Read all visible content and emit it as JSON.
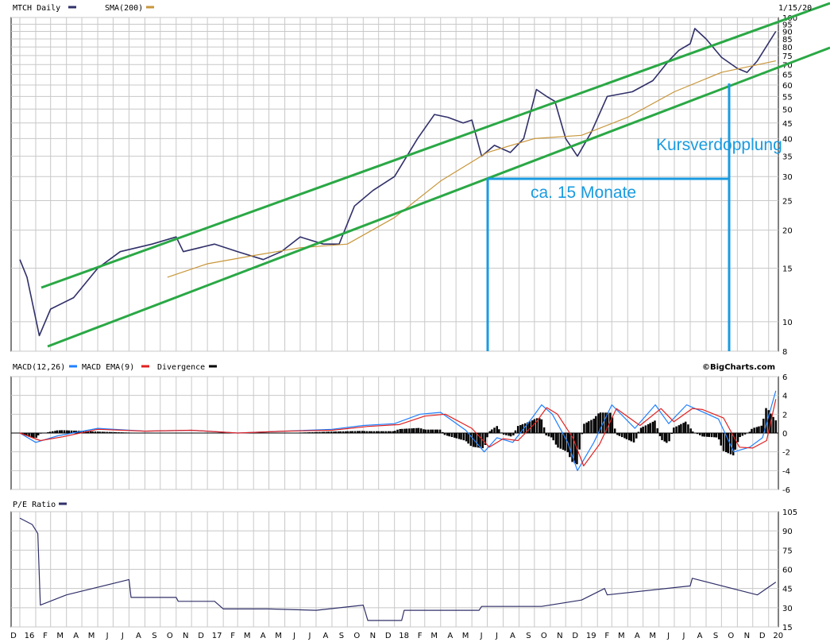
{
  "chart_data": [
    {
      "type": "line",
      "panel": "price",
      "title": "MTCH Daily",
      "date_label": "1/15/20",
      "legend": [
        {
          "name": "MTCH Daily",
          "color": "#30306a"
        },
        {
          "name": "SMA(200)",
          "color": "#c8963a"
        }
      ],
      "y_scale": "log",
      "ylim": [
        8,
        100
      ],
      "yticks": [
        100,
        95,
        90,
        85,
        80,
        75,
        70,
        65,
        60,
        55,
        50,
        45,
        40,
        35,
        30,
        25,
        20,
        15,
        10,
        8
      ],
      "series": [
        {
          "name": "MTCH Daily",
          "color": "#30306a",
          "x": [
            "2016-01-01",
            "2016-01-15",
            "2016-02-08",
            "2016-03-01",
            "2016-04-15",
            "2016-06-01",
            "2016-07-15",
            "2016-09-15",
            "2016-11-01",
            "2016-11-15",
            "2017-01-15",
            "2017-03-01",
            "2017-04-20",
            "2017-05-25",
            "2017-07-01",
            "2017-08-15",
            "2017-09-15",
            "2017-10-15",
            "2017-11-20",
            "2018-01-01",
            "2018-02-15",
            "2018-03-20",
            "2018-04-15",
            "2018-05-15",
            "2018-06-01",
            "2018-06-20",
            "2018-07-15",
            "2018-08-15",
            "2018-09-10",
            "2018-10-05",
            "2018-10-25",
            "2018-11-10",
            "2018-12-01",
            "2018-12-24",
            "2019-01-20",
            "2019-02-20",
            "2019-04-10",
            "2019-05-20",
            "2019-06-20",
            "2019-07-10",
            "2019-08-01",
            "2019-08-10",
            "2019-09-01",
            "2019-10-01",
            "2019-11-01",
            "2019-11-20",
            "2019-12-10",
            "2020-01-15"
          ],
          "y": [
            16,
            14,
            9,
            11,
            12,
            15,
            17,
            18,
            19,
            17,
            18,
            17,
            16,
            17,
            19,
            18,
            18,
            24,
            27,
            30,
            40,
            48,
            47,
            45,
            46,
            35,
            38,
            36,
            40,
            58,
            55,
            53,
            40,
            35,
            42,
            55,
            57,
            62,
            72,
            78,
            82,
            92,
            85,
            74,
            68,
            66,
            72,
            90
          ]
        },
        {
          "name": "SMA(200)",
          "color": "#c8963a",
          "x": [
            "2016-10-15",
            "2017-01-01",
            "2017-04-01",
            "2017-07-01",
            "2017-10-01",
            "2018-01-01",
            "2018-04-01",
            "2018-07-01",
            "2018-10-01",
            "2019-01-01",
            "2019-04-01",
            "2019-07-01",
            "2019-10-01",
            "2020-01-15"
          ],
          "y": [
            14,
            15.5,
            16.5,
            17.5,
            18,
            22,
            29,
            36,
            40,
            41,
            47,
            57,
            66,
            72
          ]
        }
      ],
      "annotations": [
        {
          "text": "Kursverdopplung"
        },
        {
          "text": "ca. 15 Monate"
        }
      ]
    },
    {
      "type": "line",
      "panel": "macd",
      "title": "MACD(12,26)",
      "legend": [
        {
          "name": "MACD(12,26)",
          "color": "#2080ff"
        },
        {
          "name": "MACD EMA(9)",
          "color": "#e02020"
        },
        {
          "name": "Divergence",
          "color": "#000000"
        }
      ],
      "ylim": [
        -6,
        6
      ],
      "yticks": [
        6,
        4,
        2,
        0,
        -2,
        -4,
        -6
      ],
      "series": [
        {
          "name": "MACD(12,26)",
          "color": "#2080ff",
          "x": [
            "2016-01-01",
            "2016-02-01",
            "2016-03-15",
            "2016-06-01",
            "2016-09-01",
            "2016-12-01",
            "2017-03-01",
            "2017-06-01",
            "2017-09-01",
            "2017-11-01",
            "2018-01-01",
            "2018-02-20",
            "2018-04-01",
            "2018-05-20",
            "2018-06-25",
            "2018-07-20",
            "2018-08-20",
            "2018-09-25",
            "2018-10-15",
            "2018-11-05",
            "2018-12-05",
            "2018-12-24",
            "2019-01-25",
            "2019-03-01",
            "2019-04-15",
            "2019-05-25",
            "2019-06-20",
            "2019-07-25",
            "2019-08-15",
            "2019-09-25",
            "2019-10-25",
            "2019-11-25",
            "2019-12-20",
            "2020-01-15"
          ],
          "y": [
            0,
            -1,
            -0.3,
            0.5,
            0.2,
            0.3,
            0,
            0.2,
            0.4,
            0.8,
            1.0,
            2.0,
            2.2,
            0.3,
            -2.0,
            -0.5,
            -1.0,
            1.5,
            3.0,
            2.0,
            -1.0,
            -4.0,
            -1.0,
            3.0,
            0.5,
            3.0,
            1.0,
            3.0,
            2.5,
            1.5,
            -2.0,
            -1.5,
            -0.5,
            4.5
          ]
        },
        {
          "name": "MACD EMA(9)",
          "color": "#e02020",
          "x": [
            "2016-01-01",
            "2016-02-10",
            "2016-03-25",
            "2016-06-01",
            "2016-09-01",
            "2016-12-01",
            "2017-03-01",
            "2017-06-01",
            "2017-09-01",
            "2017-11-10",
            "2018-01-10",
            "2018-03-01",
            "2018-04-10",
            "2018-06-01",
            "2018-07-05",
            "2018-08-01",
            "2018-08-30",
            "2018-10-05",
            "2018-10-25",
            "2018-11-15",
            "2018-12-15",
            "2019-01-05",
            "2019-02-05",
            "2019-03-10",
            "2019-04-25",
            "2019-06-05",
            "2019-06-30",
            "2019-08-05",
            "2019-08-25",
            "2019-10-05",
            "2019-11-05",
            "2019-12-01",
            "2019-12-28",
            "2020-01-15"
          ],
          "y": [
            0,
            -0.8,
            -0.4,
            0.4,
            0.2,
            0.3,
            0,
            0.2,
            0.3,
            0.7,
            0.9,
            1.8,
            2.0,
            0.5,
            -1.5,
            -0.6,
            -0.8,
            1.2,
            2.7,
            2.0,
            -0.5,
            -3.5,
            -1.2,
            2.6,
            0.8,
            2.6,
            1.2,
            2.6,
            2.5,
            1.6,
            -1.5,
            -1.6,
            -0.8,
            3.6
          ]
        }
      ]
    },
    {
      "type": "line",
      "panel": "pe",
      "title": "P/E Ratio",
      "legend": [
        {
          "name": "P/E Ratio",
          "color": "#30306a"
        }
      ],
      "ylim": [
        15,
        105
      ],
      "yticks": [
        105,
        90,
        75,
        60,
        45,
        30,
        15
      ],
      "series": [
        {
          "name": "P/E Ratio",
          "color": "#30306a",
          "x": [
            "2016-01-01",
            "2016-01-25",
            "2016-02-05",
            "2016-02-10",
            "2016-04-01",
            "2016-06-01",
            "2016-08-01",
            "2016-08-05",
            "2016-11-01",
            "2016-11-05",
            "2017-01-15",
            "2017-02-01",
            "2017-05-01",
            "2017-08-01",
            "2017-11-01",
            "2017-11-10",
            "2018-01-15",
            "2018-01-20",
            "2018-06-15",
            "2018-06-20",
            "2018-10-15",
            "2019-01-01",
            "2019-02-15",
            "2019-02-20",
            "2019-08-01",
            "2019-08-05",
            "2019-11-01",
            "2019-12-10",
            "2020-01-15"
          ],
          "y": [
            100,
            95,
            88,
            32,
            40,
            46,
            52,
            38,
            38,
            35,
            35,
            29,
            29,
            28,
            32,
            20,
            20,
            28,
            28,
            31,
            31,
            36,
            45,
            40,
            47,
            53,
            44,
            40,
            50
          ]
        }
      ]
    }
  ],
  "x_axis": {
    "ticks": [
      "D",
      "16",
      "F",
      "M",
      "A",
      "M",
      "J",
      "J",
      "A",
      "S",
      "O",
      "N",
      "D",
      "17",
      "F",
      "M",
      "A",
      "M",
      "J",
      "J",
      "A",
      "S",
      "O",
      "N",
      "D",
      "18",
      "F",
      "M",
      "A",
      "M",
      "J",
      "J",
      "A",
      "S",
      "O",
      "N",
      "D",
      "19",
      "F",
      "M",
      "A",
      "M",
      "J",
      "J",
      "A",
      "S",
      "O",
      "N",
      "D",
      "20"
    ]
  },
  "credit": "©BigCharts.com"
}
